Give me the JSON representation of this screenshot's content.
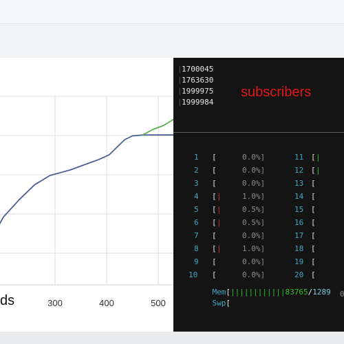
{
  "chart_data": {
    "type": "line",
    "x_ticks": [
      300,
      400,
      500
    ],
    "xlabel_partial": "ds",
    "xlim": [
      180,
      540
    ],
    "ylim": [
      0,
      1
    ],
    "grid": true,
    "series": [
      {
        "color": "#4a5f95",
        "points": [
          [
            180,
            0.26
          ],
          [
            200,
            0.36
          ],
          [
            230,
            0.45
          ],
          [
            260,
            0.53
          ],
          [
            290,
            0.58
          ],
          [
            330,
            0.61
          ],
          [
            360,
            0.64
          ],
          [
            385,
            0.665
          ],
          [
            405,
            0.69
          ],
          [
            420,
            0.73
          ],
          [
            435,
            0.77
          ],
          [
            450,
            0.79
          ],
          [
            470,
            0.795
          ],
          [
            490,
            0.795
          ],
          [
            510,
            0.795
          ],
          [
            540,
            0.795
          ]
        ]
      },
      {
        "color": "#62aa59",
        "points": [
          [
            470,
            0.795
          ],
          [
            490,
            0.825
          ],
          [
            510,
            0.845
          ],
          [
            525,
            0.87
          ],
          [
            540,
            0.895
          ]
        ]
      }
    ]
  },
  "terminal": {
    "counters": [
      "1700045",
      "1763630",
      "1999975",
      "1999984"
    ],
    "subscribers_label": "subscribers",
    "cpus": [
      {
        "num": "1",
        "bar": "",
        "pct": "0.0%]",
        "num2": "11",
        "bar2": "|"
      },
      {
        "num": "2",
        "bar": "",
        "pct": "0.0%]",
        "num2": "12",
        "bar2": "|"
      },
      {
        "num": "3",
        "bar": "",
        "pct": "0.0%]",
        "num2": "13",
        "bar2": ""
      },
      {
        "num": "4",
        "bar": "|",
        "pct": "1.0%]",
        "num2": "14",
        "bar2": ""
      },
      {
        "num": "5",
        "bar": "|",
        "pct": "0.5%]",
        "num2": "15",
        "bar2": ""
      },
      {
        "num": "6",
        "bar": "|",
        "pct": "0.5%]",
        "num2": "16",
        "bar2": ""
      },
      {
        "num": "7",
        "bar": "",
        "pct": "0.0%]",
        "num2": "17",
        "bar2": ""
      },
      {
        "num": "8",
        "bar": "|",
        "pct": "1.0%]",
        "num2": "18",
        "bar2": ""
      },
      {
        "num": "9",
        "bar": "",
        "pct": "0.0%]",
        "num2": "19",
        "bar2": ""
      },
      {
        "num": "10",
        "bar": "",
        "pct": "0.0%]",
        "num2": "20",
        "bar2": ""
      }
    ],
    "mem_label": "Mem",
    "mem_bars": "||||||||||||",
    "mem_used": "83765",
    "mem_sep": "/",
    "mem_total": "1289",
    "swp_label": "Swp",
    "swp_tail": "0"
  }
}
